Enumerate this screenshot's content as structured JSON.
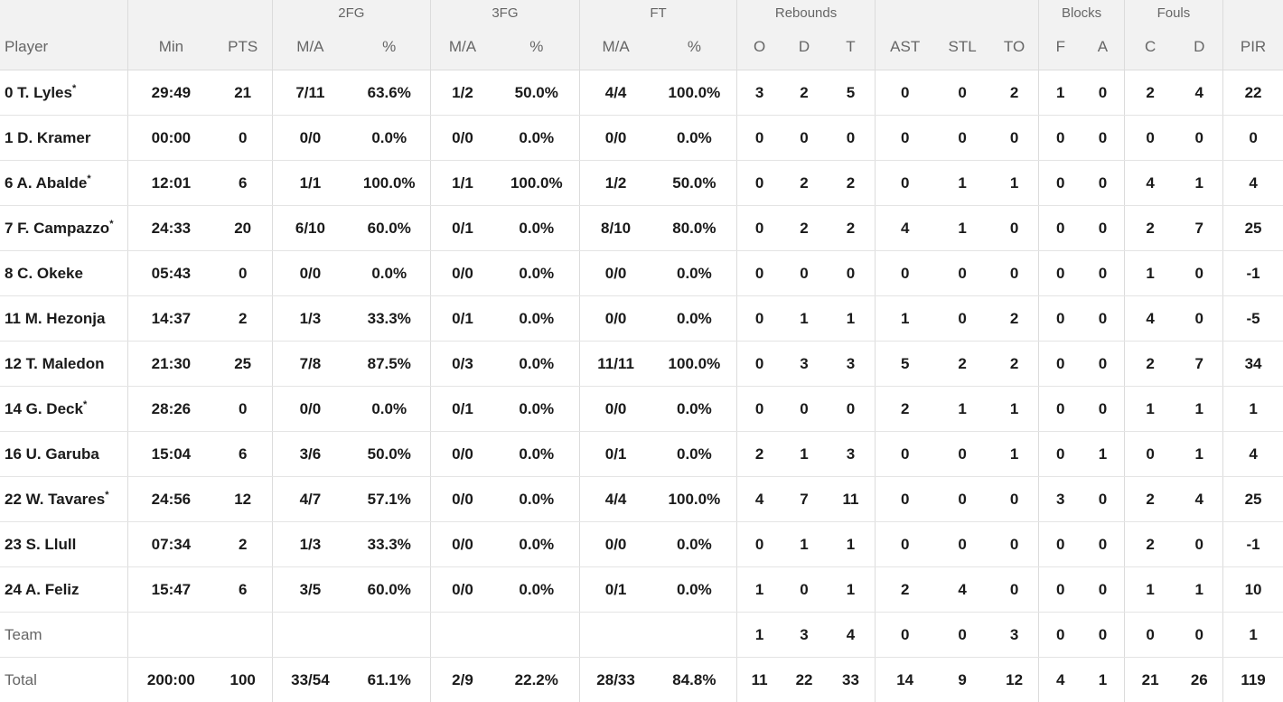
{
  "headers": {
    "groups": {
      "fg2": "2FG",
      "fg3": "3FG",
      "ft": "FT",
      "rebounds": "Rebounds",
      "blocks": "Blocks",
      "fouls": "Fouls"
    },
    "columns": {
      "player": "Player",
      "min": "Min",
      "pts": "PTS",
      "fg2_ma": "M/A",
      "fg2_pct": "%",
      "fg3_ma": "M/A",
      "fg3_pct": "%",
      "ft_ma": "M/A",
      "ft_pct": "%",
      "reb_o": "O",
      "reb_d": "D",
      "reb_t": "T",
      "ast": "AST",
      "stl": "STL",
      "to": "TO",
      "blk_f": "F",
      "blk_a": "A",
      "foul_c": "C",
      "foul_d": "D",
      "pir": "PIR"
    }
  },
  "rows": [
    {
      "player": "0 T. Lyles",
      "starter": "*",
      "min": "29:49",
      "pts": "21",
      "fg2_ma": "7/11",
      "fg2_pct": "63.6%",
      "fg3_ma": "1/2",
      "fg3_pct": "50.0%",
      "ft_ma": "4/4",
      "ft_pct": "100.0%",
      "reb_o": "3",
      "reb_d": "2",
      "reb_t": "5",
      "ast": "0",
      "stl": "0",
      "to": "2",
      "blk_f": "1",
      "blk_a": "0",
      "foul_c": "2",
      "foul_d": "4",
      "pir": "22"
    },
    {
      "player": "1 D. Kramer",
      "starter": "",
      "min": "00:00",
      "pts": "0",
      "fg2_ma": "0/0",
      "fg2_pct": "0.0%",
      "fg3_ma": "0/0",
      "fg3_pct": "0.0%",
      "ft_ma": "0/0",
      "ft_pct": "0.0%",
      "reb_o": "0",
      "reb_d": "0",
      "reb_t": "0",
      "ast": "0",
      "stl": "0",
      "to": "0",
      "blk_f": "0",
      "blk_a": "0",
      "foul_c": "0",
      "foul_d": "0",
      "pir": "0"
    },
    {
      "player": "6 A. Abalde",
      "starter": "*",
      "min": "12:01",
      "pts": "6",
      "fg2_ma": "1/1",
      "fg2_pct": "100.0%",
      "fg3_ma": "1/1",
      "fg3_pct": "100.0%",
      "ft_ma": "1/2",
      "ft_pct": "50.0%",
      "reb_o": "0",
      "reb_d": "2",
      "reb_t": "2",
      "ast": "0",
      "stl": "1",
      "to": "1",
      "blk_f": "0",
      "blk_a": "0",
      "foul_c": "4",
      "foul_d": "1",
      "pir": "4"
    },
    {
      "player": "7 F. Campazzo",
      "starter": "*",
      "min": "24:33",
      "pts": "20",
      "fg2_ma": "6/10",
      "fg2_pct": "60.0%",
      "fg3_ma": "0/1",
      "fg3_pct": "0.0%",
      "ft_ma": "8/10",
      "ft_pct": "80.0%",
      "reb_o": "0",
      "reb_d": "2",
      "reb_t": "2",
      "ast": "4",
      "stl": "1",
      "to": "0",
      "blk_f": "0",
      "blk_a": "0",
      "foul_c": "2",
      "foul_d": "7",
      "pir": "25"
    },
    {
      "player": "8 C. Okeke",
      "starter": "",
      "min": "05:43",
      "pts": "0",
      "fg2_ma": "0/0",
      "fg2_pct": "0.0%",
      "fg3_ma": "0/0",
      "fg3_pct": "0.0%",
      "ft_ma": "0/0",
      "ft_pct": "0.0%",
      "reb_o": "0",
      "reb_d": "0",
      "reb_t": "0",
      "ast": "0",
      "stl": "0",
      "to": "0",
      "blk_f": "0",
      "blk_a": "0",
      "foul_c": "1",
      "foul_d": "0",
      "pir": "-1"
    },
    {
      "player": "11 M. Hezonja",
      "starter": "",
      "min": "14:37",
      "pts": "2",
      "fg2_ma": "1/3",
      "fg2_pct": "33.3%",
      "fg3_ma": "0/1",
      "fg3_pct": "0.0%",
      "ft_ma": "0/0",
      "ft_pct": "0.0%",
      "reb_o": "0",
      "reb_d": "1",
      "reb_t": "1",
      "ast": "1",
      "stl": "0",
      "to": "2",
      "blk_f": "0",
      "blk_a": "0",
      "foul_c": "4",
      "foul_d": "0",
      "pir": "-5"
    },
    {
      "player": "12 T. Maledon",
      "starter": "",
      "min": "21:30",
      "pts": "25",
      "fg2_ma": "7/8",
      "fg2_pct": "87.5%",
      "fg3_ma": "0/3",
      "fg3_pct": "0.0%",
      "ft_ma": "11/11",
      "ft_pct": "100.0%",
      "reb_o": "0",
      "reb_d": "3",
      "reb_t": "3",
      "ast": "5",
      "stl": "2",
      "to": "2",
      "blk_f": "0",
      "blk_a": "0",
      "foul_c": "2",
      "foul_d": "7",
      "pir": "34"
    },
    {
      "player": "14 G. Deck",
      "starter": "*",
      "min": "28:26",
      "pts": "0",
      "fg2_ma": "0/0",
      "fg2_pct": "0.0%",
      "fg3_ma": "0/1",
      "fg3_pct": "0.0%",
      "ft_ma": "0/0",
      "ft_pct": "0.0%",
      "reb_o": "0",
      "reb_d": "0",
      "reb_t": "0",
      "ast": "2",
      "stl": "1",
      "to": "1",
      "blk_f": "0",
      "blk_a": "0",
      "foul_c": "1",
      "foul_d": "1",
      "pir": "1"
    },
    {
      "player": "16 U. Garuba",
      "starter": "",
      "min": "15:04",
      "pts": "6",
      "fg2_ma": "3/6",
      "fg2_pct": "50.0%",
      "fg3_ma": "0/0",
      "fg3_pct": "0.0%",
      "ft_ma": "0/1",
      "ft_pct": "0.0%",
      "reb_o": "2",
      "reb_d": "1",
      "reb_t": "3",
      "ast": "0",
      "stl": "0",
      "to": "1",
      "blk_f": "0",
      "blk_a": "1",
      "foul_c": "0",
      "foul_d": "1",
      "pir": "4"
    },
    {
      "player": "22 W. Tavares",
      "starter": "*",
      "min": "24:56",
      "pts": "12",
      "fg2_ma": "4/7",
      "fg2_pct": "57.1%",
      "fg3_ma": "0/0",
      "fg3_pct": "0.0%",
      "ft_ma": "4/4",
      "ft_pct": "100.0%",
      "reb_o": "4",
      "reb_d": "7",
      "reb_t": "11",
      "ast": "0",
      "stl": "0",
      "to": "0",
      "blk_f": "3",
      "blk_a": "0",
      "foul_c": "2",
      "foul_d": "4",
      "pir": "25"
    },
    {
      "player": "23 S. Llull",
      "starter": "",
      "min": "07:34",
      "pts": "2",
      "fg2_ma": "1/3",
      "fg2_pct": "33.3%",
      "fg3_ma": "0/0",
      "fg3_pct": "0.0%",
      "ft_ma": "0/0",
      "ft_pct": "0.0%",
      "reb_o": "0",
      "reb_d": "1",
      "reb_t": "1",
      "ast": "0",
      "stl": "0",
      "to": "0",
      "blk_f": "0",
      "blk_a": "0",
      "foul_c": "2",
      "foul_d": "0",
      "pir": "-1"
    },
    {
      "player": "24 A. Feliz",
      "starter": "",
      "min": "15:47",
      "pts": "6",
      "fg2_ma": "3/5",
      "fg2_pct": "60.0%",
      "fg3_ma": "0/0",
      "fg3_pct": "0.0%",
      "ft_ma": "0/1",
      "ft_pct": "0.0%",
      "reb_o": "1",
      "reb_d": "0",
      "reb_t": "1",
      "ast": "2",
      "stl": "4",
      "to": "0",
      "blk_f": "0",
      "blk_a": "0",
      "foul_c": "1",
      "foul_d": "1",
      "pir": "10"
    }
  ],
  "team": {
    "label": "Team",
    "reb_o": "1",
    "reb_d": "3",
    "reb_t": "4",
    "ast": "0",
    "stl": "0",
    "to": "3",
    "blk_f": "0",
    "blk_a": "0",
    "foul_c": "0",
    "foul_d": "0",
    "pir": "1"
  },
  "total": {
    "label": "Total",
    "min": "200:00",
    "pts": "100",
    "fg2_ma": "33/54",
    "fg2_pct": "61.1%",
    "fg3_ma": "2/9",
    "fg3_pct": "22.2%",
    "ft_ma": "28/33",
    "ft_pct": "84.8%",
    "reb_o": "11",
    "reb_d": "22",
    "reb_t": "33",
    "ast": "14",
    "stl": "9",
    "to": "12",
    "blk_f": "4",
    "blk_a": "1",
    "foul_c": "21",
    "foul_d": "26",
    "pir": "119"
  }
}
